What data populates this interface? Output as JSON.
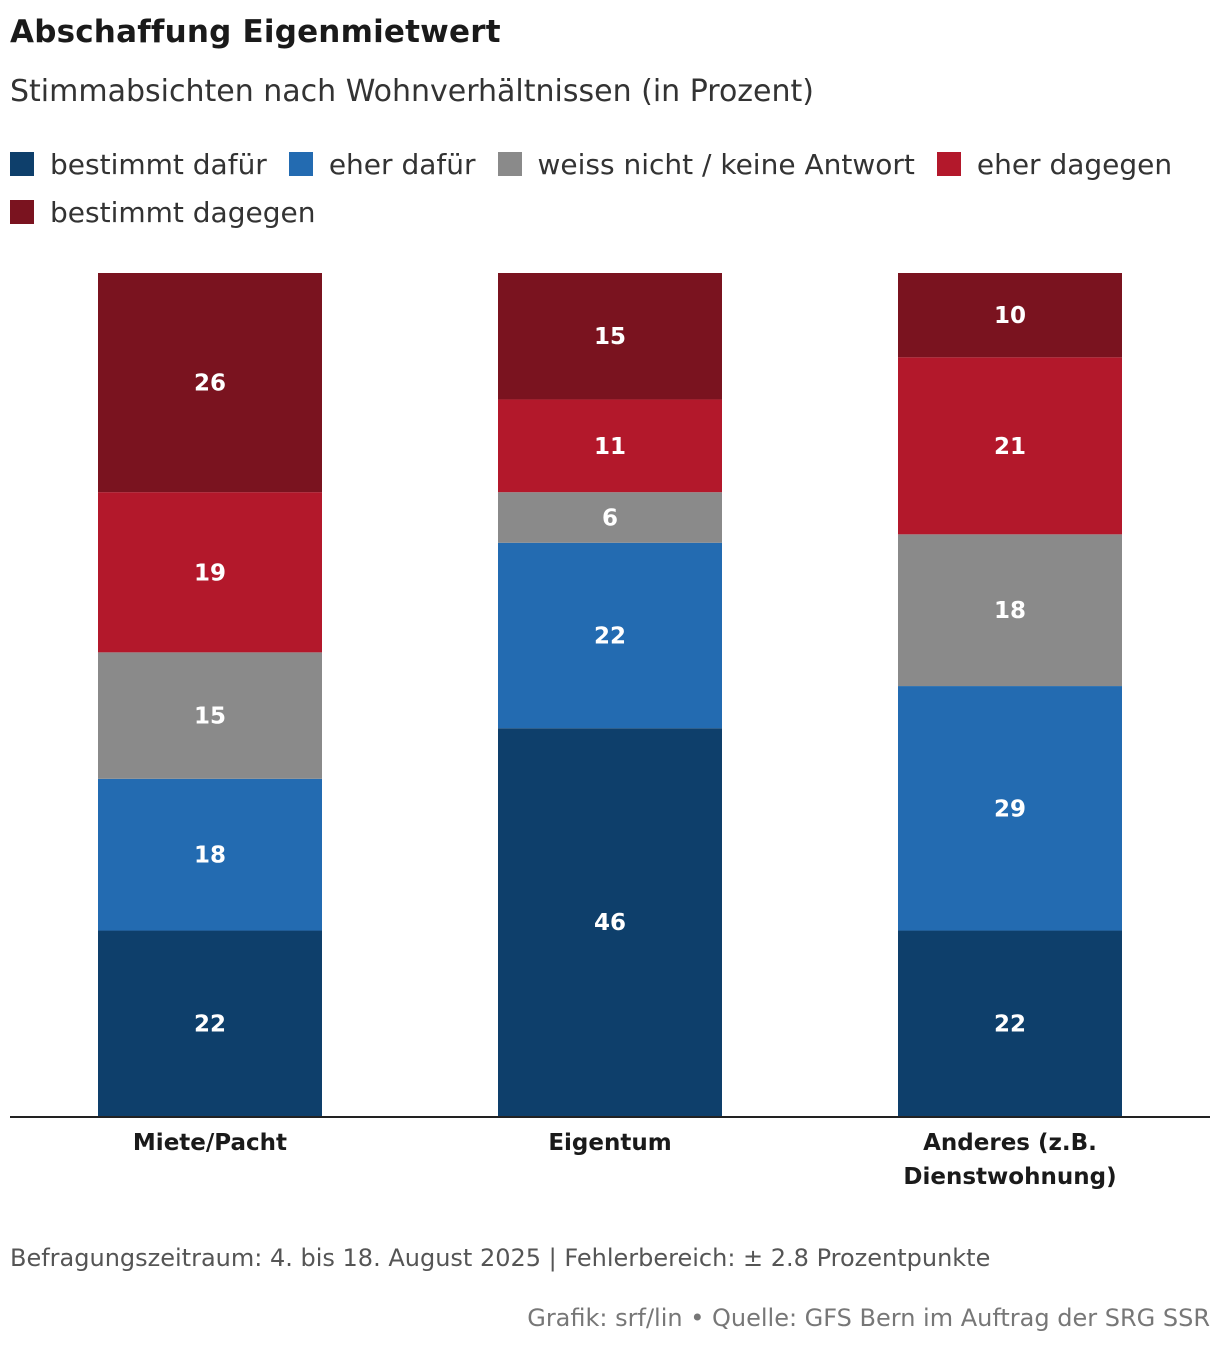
{
  "header": {
    "title": "Abschaffung Eigenmietwert",
    "subtitle": "Stimmabsichten nach Wohnverhältnissen (in Prozent)"
  },
  "legend": [
    {
      "label": "bestimmt dafür",
      "color": "#0e3f6b"
    },
    {
      "label": "eher dafür",
      "color": "#236bb1"
    },
    {
      "label": "weiss nicht / keine Antwort",
      "color": "#8a8a8a"
    },
    {
      "label": "eher dagegen",
      "color": "#b3182b"
    },
    {
      "label": "bestimmt dagegen",
      "color": "#7a131f"
    }
  ],
  "chart_data": {
    "type": "bar",
    "stacked": true,
    "title": "Abschaffung Eigenmietwert",
    "subtitle": "Stimmabsichten nach Wohnverhältnissen (in Prozent)",
    "ylim": [
      0,
      100
    ],
    "categories": [
      [
        "Miete/Pacht"
      ],
      [
        "Eigentum"
      ],
      [
        "Anderes (z.B.",
        "Dienstwohnung)"
      ]
    ],
    "series": [
      {
        "name": "bestimmt dafür",
        "color": "#0e3f6b",
        "values": [
          22,
          46,
          22
        ]
      },
      {
        "name": "eher dafür",
        "color": "#236bb1",
        "values": [
          18,
          22,
          29
        ]
      },
      {
        "name": "weiss nicht / keine Antwort",
        "color": "#8a8a8a",
        "values": [
          15,
          6,
          18
        ]
      },
      {
        "name": "eher dagegen",
        "color": "#b3182b",
        "values": [
          19,
          11,
          21
        ]
      },
      {
        "name": "bestimmt dagegen",
        "color": "#7a131f",
        "values": [
          26,
          15,
          10
        ]
      }
    ]
  },
  "footer": {
    "note": "Befragungszeitraum: 4. bis 18. August 2025 | Fehlerbereich: ± 2.8 Prozentpunkte",
    "credit": "Grafik: srf/lin • Quelle: GFS Bern im Auftrag der SRG SSR"
  }
}
